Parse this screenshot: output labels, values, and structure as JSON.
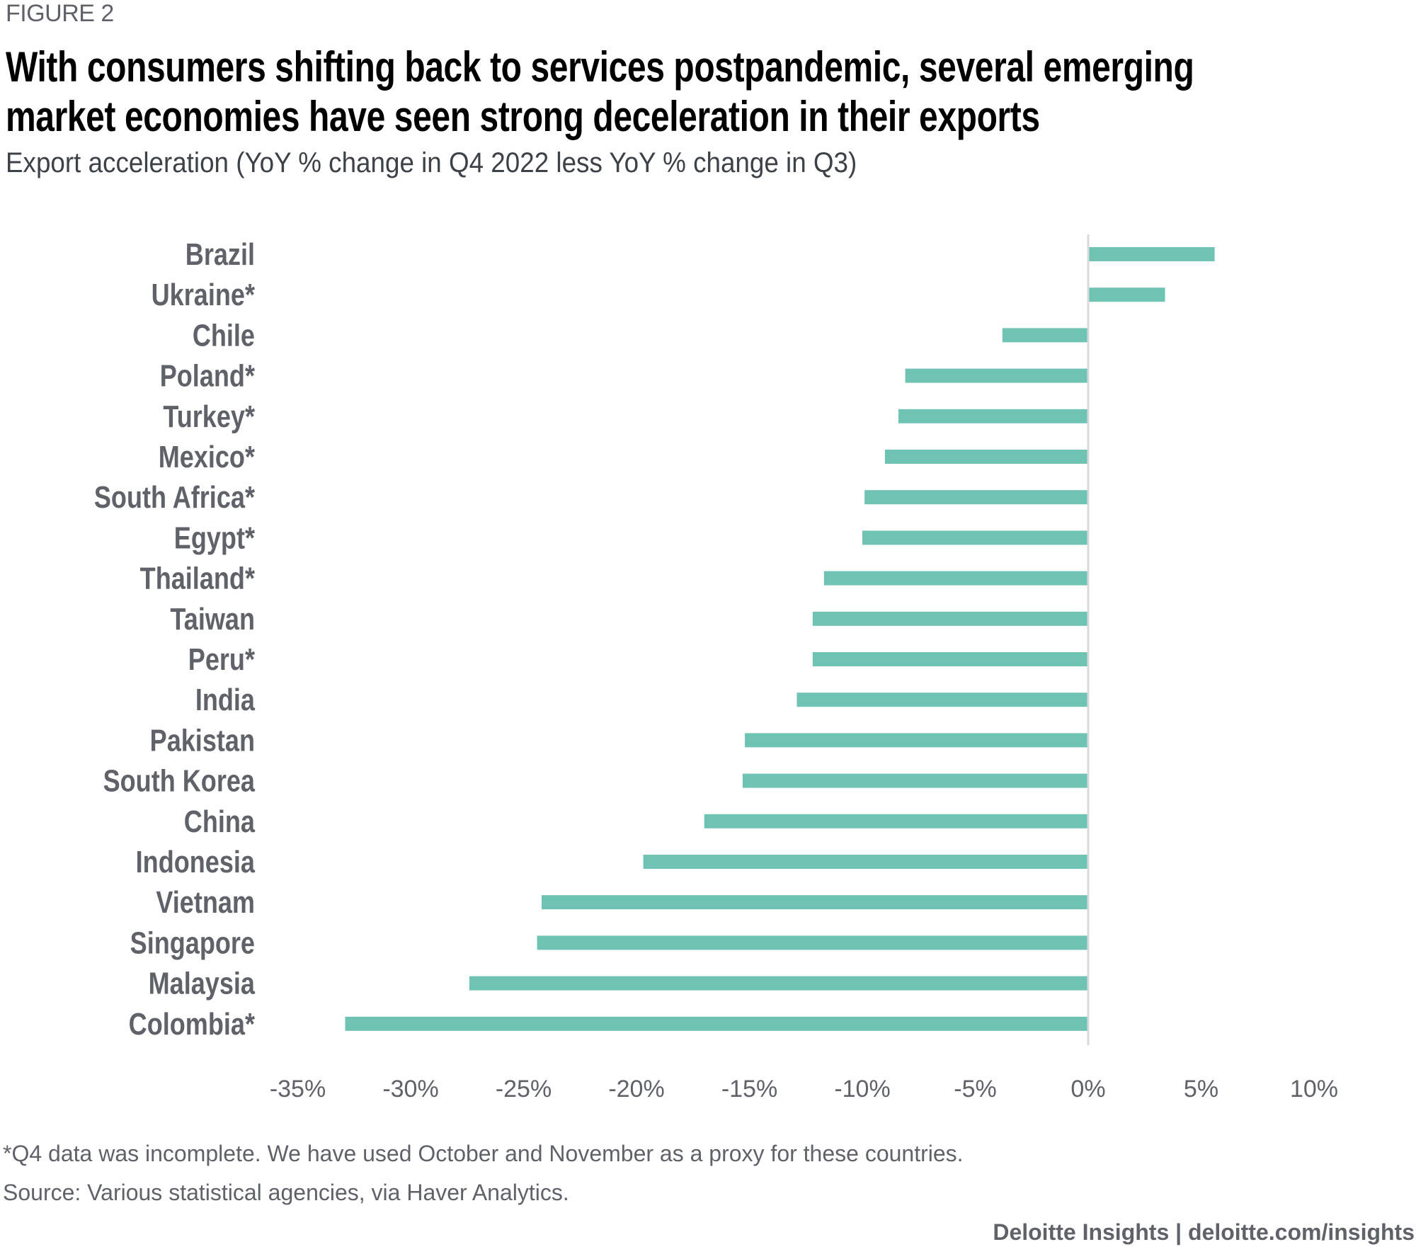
{
  "header": {
    "figure_label": "FIGURE 2",
    "title_line_1": "With consumers shifting back to services postpandemic, several emerging",
    "title_line_2": "market economies have seen strong deceleration in their exports",
    "subtitle": "Export acceleration (YoY % change in Q4 2022 less YoY % change in Q3)"
  },
  "colors": {
    "bar": "#6fc3b2",
    "zero_line": "#d9d9d9",
    "label_text": "#5f6369",
    "title_text": "#000000"
  },
  "chart_data": {
    "type": "bar",
    "orientation": "horizontal",
    "title": "With consumers shifting back to services postpandemic, several emerging market economies have seen strong deceleration in their exports",
    "subtitle": "Export acceleration (YoY % change in Q4 2022 less YoY % change in Q3)",
    "xlabel": "",
    "ylabel": "",
    "unit": "%",
    "xlim": [
      -35,
      10
    ],
    "x_ticks": [
      -35,
      -30,
      -25,
      -20,
      -15,
      -10,
      -5,
      0,
      5,
      10
    ],
    "x_tick_labels": [
      "-35%",
      "-30%",
      "-25%",
      "-20%",
      "-15%",
      "-10%",
      "-5%",
      "0%",
      "5%",
      "10%"
    ],
    "grid": false,
    "legend": "none",
    "categories": [
      "Brazil",
      "Ukraine*",
      "Chile",
      "Poland*",
      "Turkey*",
      "Mexico*",
      "South Africa*",
      "Egypt*",
      "Thailand*",
      "Taiwan",
      "Peru*",
      "India",
      "Pakistan",
      "South Korea",
      "China",
      "Indonesia",
      "Vietnam",
      "Singapore",
      "Malaysia",
      "Colombia*"
    ],
    "values": [
      5.6,
      3.4,
      -3.8,
      -8.1,
      -8.4,
      -9.0,
      -9.9,
      -10.0,
      -11.7,
      -12.2,
      -12.2,
      -12.9,
      -15.2,
      -15.3,
      -17.0,
      -19.7,
      -24.2,
      -24.4,
      -27.4,
      -32.9
    ]
  },
  "footer": {
    "note": "*Q4 data was incomplete. We have used October and November as a proxy for these countries.",
    "source": "Source: Various statistical agencies, via Haver Analytics.",
    "credit": "Deloitte Insights | deloitte.com/insights"
  }
}
